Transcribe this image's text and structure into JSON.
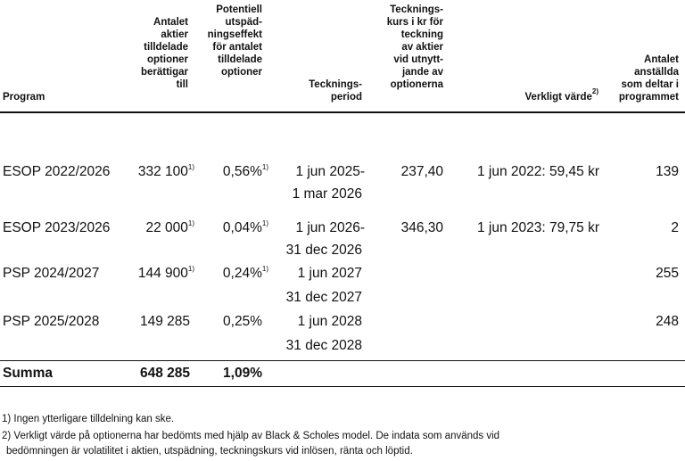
{
  "headers": {
    "program": "Program",
    "antal_optioner": "Antalet\naktier\ntilldelade\noptioner\nberättigar\ntill",
    "utspadning": "Potentiell\nutspäd-\nningseffekt\nför antalet\ntilldelade\noptioner",
    "period": "Tecknings-\nperiod",
    "kurs": "Tecknings-\nkurs i kr för\nteckning\nav aktier\nvid utnytt-\njande av\noptionerna",
    "varde": "Verkligt värde",
    "varde_sup": "2)",
    "anstallda": "Antalet\nanställda\nsom deltar i\nprogrammet"
  },
  "rows": [
    {
      "program": "ESOP 2022/2026",
      "antal": "332 100",
      "antal_sup": "1)",
      "effekt": "0,56%",
      "effekt_sup": "1)",
      "period1": "1 jun 2025-",
      "period2": "1 mar 2026",
      "kurs": "237,40",
      "varde": "1 jun 2022: 59,45 kr",
      "anstallda": "139"
    },
    {
      "program": "ESOP 2023/2026",
      "antal": "22 000",
      "antal_sup": "1)",
      "effekt": "0,04%",
      "effekt_sup": "1)",
      "period1": "1 jun 2026-",
      "period2": "31 dec 2026",
      "kurs": "346,30",
      "varde": "1 jun 2023: 79,75 kr",
      "anstallda": "2"
    },
    {
      "program": "PSP 2024/2027",
      "antal": "144 900",
      "antal_sup": "1)",
      "effekt": "0,24%",
      "effekt_sup": "1)",
      "period1": "1 jun 2027",
      "period2": "31 dec 2027",
      "kurs": "",
      "varde": "",
      "anstallda": "255"
    },
    {
      "program": "PSP 2025/2028",
      "antal": "149 285",
      "antal_sup": "",
      "effekt": "0,25%",
      "effekt_sup": "",
      "period1": "1 jun 2028",
      "period2": "31 dec 2028",
      "kurs": "",
      "varde": "",
      "anstallda": "248"
    }
  ],
  "total": {
    "label": "Summa",
    "antal": "648 285",
    "effekt": "1,09%"
  },
  "footnotes": [
    "1) Ingen ytterligare tilldelning kan ske.",
    "2) Verkligt värde på optionerna har bedömts med hjälp av Black & Scholes model. De indata som används vid",
    "bedömningen är volatilitet i aktien, utspädning, teckningskurs vid inlösen, ränta och löptid."
  ]
}
